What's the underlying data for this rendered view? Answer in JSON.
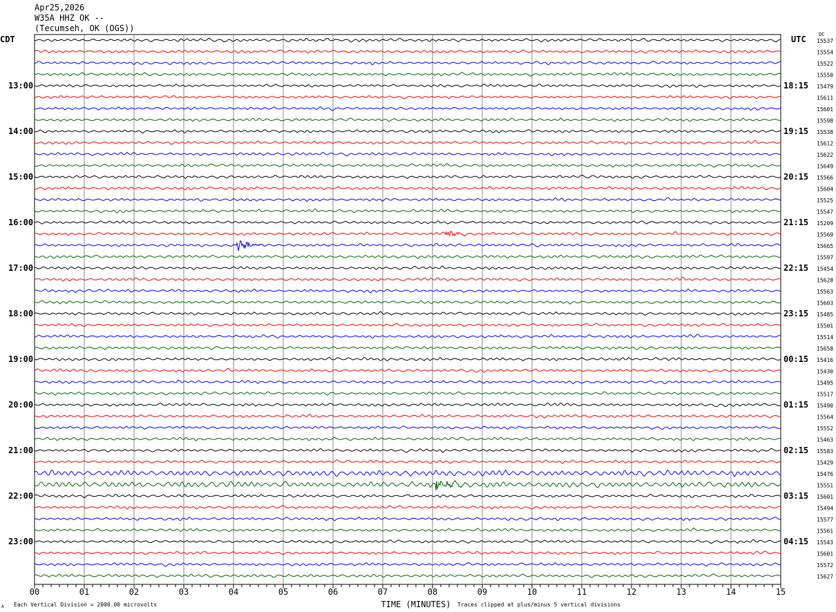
{
  "header": {
    "date": "Apr25,2026",
    "station": "W35A HHZ OK --",
    "location": "(Tecumseh, OK (OGS))"
  },
  "chart_data": {
    "type": "line",
    "title": "W35A HHZ OK --",
    "left_timezone": "CDT",
    "right_timezone": "UTC",
    "dc_label": "DC",
    "xlabel": "TIME (MINUTES)",
    "x_ticks": [
      "00",
      "01",
      "02",
      "03",
      "04",
      "05",
      "06",
      "07",
      "08",
      "09",
      "10",
      "11",
      "12",
      "13",
      "14",
      "15"
    ],
    "xlim": [
      0,
      15
    ],
    "left_hour_labels": [
      "13:00",
      "14:00",
      "15:00",
      "16:00",
      "17:00",
      "18:00",
      "19:00",
      "20:00",
      "21:00",
      "22:00",
      "23:00"
    ],
    "right_hour_labels": [
      "18:15",
      "19:15",
      "20:15",
      "21:15",
      "22:15",
      "23:15",
      "00:15",
      "01:15",
      "02:15",
      "03:15",
      "04:15"
    ],
    "trace_colors": [
      "#000000",
      "#ff0000",
      "#0000ff",
      "#006400"
    ],
    "dc_values": [
      "15537",
      "15554",
      "15522",
      "15550",
      "15479",
      "15611",
      "15601",
      "15598",
      "15538",
      "15612",
      "15622",
      "15649",
      "15566",
      "15604",
      "15525",
      "15547",
      "15209",
      "15569",
      "15665",
      "15597",
      "15454",
      "15628",
      "15563",
      "15603",
      "15485",
      "15501",
      "15514",
      "15658",
      "15416",
      "15430",
      "15495",
      "15517",
      "15490",
      "15564",
      "15552",
      "15463",
      "15583",
      "15429",
      "15476",
      "15551",
      "15601",
      "15494",
      "15577",
      "15561",
      "15543",
      "15601",
      "15572",
      "15627"
    ],
    "events": [
      {
        "row": 17,
        "minute": 8.3,
        "amplitude": 0.5
      },
      {
        "row": 18,
        "minute": 4.1,
        "amplitude": 1.0
      },
      {
        "row": 39,
        "minute": 8.1,
        "amplitude": 1.0
      }
    ],
    "noisy_rows": [
      38,
      39
    ],
    "footer_left": "Each Vertical Division = 2000.00 microvolts",
    "footer_right": "Traces clipped at plus/minus 5 vertical divisions",
    "corner_mark": "A"
  }
}
